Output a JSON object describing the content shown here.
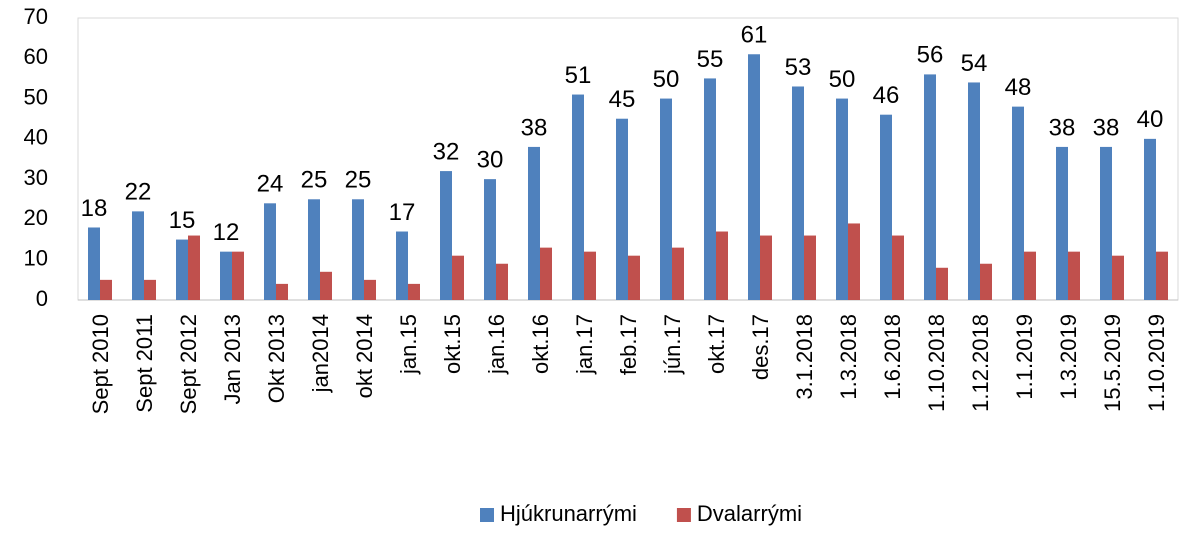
{
  "chart_data": {
    "type": "bar",
    "categories": [
      "Sept 2010",
      "Sept 2011",
      "Sept 2012",
      "Jan 2013",
      "Okt 2013",
      "jan2014",
      "okt 2014",
      "jan.15",
      "okt.15",
      "jan.16",
      "okt.16",
      "jan.17",
      "feb.17",
      "jún.17",
      "okt.17",
      "des.17",
      "3.1.2018",
      "1.3.2018",
      "1.6.2018",
      "1.10.2018",
      "1.12.2018",
      "1.1.2019",
      "1.3.2019",
      "15.5.2019",
      "1.10.2019"
    ],
    "series": [
      {
        "name": "Hjúkrunarrými",
        "color": "#4f81bd",
        "data_labels": true,
        "values": [
          18,
          22,
          15,
          12,
          24,
          25,
          25,
          17,
          32,
          30,
          38,
          51,
          45,
          50,
          55,
          61,
          53,
          50,
          46,
          56,
          54,
          48,
          38,
          38,
          40
        ]
      },
      {
        "name": "Dvalarrými",
        "color": "#c0504d",
        "data_labels": false,
        "values": [
          5,
          5,
          16,
          12,
          4,
          7,
          5,
          4,
          11,
          9,
          13,
          12,
          11,
          13,
          17,
          16,
          16,
          19,
          16,
          8,
          9,
          12,
          12,
          11,
          12
        ]
      }
    ],
    "ylim": [
      0,
      70
    ],
    "yticks": [
      0,
      10,
      20,
      30,
      40,
      50,
      60,
      70
    ],
    "grid": false,
    "legend": "bottom"
  }
}
